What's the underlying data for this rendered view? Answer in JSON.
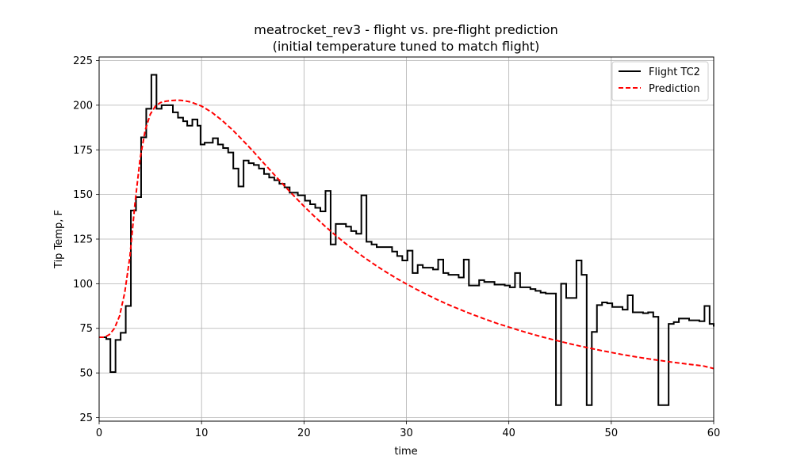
{
  "chart_data": {
    "type": "line",
    "title": "meatrocket_rev3 - flight vs. pre-flight prediction",
    "subtitle": "(initial temperature tuned to match flight)",
    "xlabel": "time",
    "ylabel": "Tip Temp, F",
    "xlim": [
      0,
      60
    ],
    "ylim": [
      23,
      227
    ],
    "xticks": [
      0,
      10,
      20,
      30,
      40,
      50,
      60
    ],
    "yticks": [
      25,
      50,
      75,
      100,
      125,
      150,
      175,
      200,
      225
    ],
    "grid": true,
    "legend_position": "top-right",
    "series": [
      {
        "name": "Flight TC2",
        "color": "#000000",
        "style": "solid",
        "step": true,
        "points": [
          [
            0,
            70
          ],
          [
            0.7,
            70
          ],
          [
            0.7,
            69
          ],
          [
            1.1,
            69
          ],
          [
            1.1,
            50.5
          ],
          [
            1.6,
            50.5
          ],
          [
            1.6,
            68.5
          ],
          [
            2.1,
            68.5
          ],
          [
            2.1,
            72.5
          ],
          [
            2.6,
            72.5
          ],
          [
            2.6,
            87.5
          ],
          [
            3.1,
            87.5
          ],
          [
            3.1,
            141
          ],
          [
            3.6,
            141
          ],
          [
            3.6,
            148.5
          ],
          [
            4.1,
            148.5
          ],
          [
            4.1,
            182
          ],
          [
            4.6,
            182
          ],
          [
            4.6,
            198
          ],
          [
            5.1,
            198
          ],
          [
            5.1,
            217
          ],
          [
            5.6,
            217
          ],
          [
            5.6,
            198
          ],
          [
            6.1,
            198
          ],
          [
            6.1,
            200
          ],
          [
            7.2,
            200
          ],
          [
            7.2,
            196
          ],
          [
            7.7,
            196
          ],
          [
            7.7,
            193
          ],
          [
            8.2,
            193
          ],
          [
            8.2,
            191
          ],
          [
            8.6,
            191
          ],
          [
            8.6,
            188.5
          ],
          [
            9.1,
            188.5
          ],
          [
            9.1,
            192
          ],
          [
            9.6,
            192
          ],
          [
            9.6,
            188.5
          ],
          [
            9.9,
            188.5
          ],
          [
            9.9,
            178
          ],
          [
            10.3,
            178
          ],
          [
            10.3,
            179
          ],
          [
            11.1,
            179
          ],
          [
            11.1,
            181.5
          ],
          [
            11.6,
            181.5
          ],
          [
            11.6,
            178
          ],
          [
            12.1,
            178
          ],
          [
            12.1,
            176
          ],
          [
            12.6,
            176
          ],
          [
            12.6,
            173.5
          ],
          [
            13.1,
            173.5
          ],
          [
            13.1,
            164.5
          ],
          [
            13.6,
            164.5
          ],
          [
            13.6,
            154.5
          ],
          [
            14.1,
            154.5
          ],
          [
            14.1,
            169
          ],
          [
            14.6,
            169
          ],
          [
            14.6,
            167.5
          ],
          [
            15.1,
            167.5
          ],
          [
            15.1,
            166.5
          ],
          [
            15.6,
            166.5
          ],
          [
            15.6,
            164.5
          ],
          [
            16.1,
            164.5
          ],
          [
            16.1,
            161.5
          ],
          [
            16.6,
            161.5
          ],
          [
            16.6,
            159.5
          ],
          [
            17.1,
            159.5
          ],
          [
            17.1,
            158
          ],
          [
            17.6,
            158
          ],
          [
            17.6,
            156
          ],
          [
            18.1,
            156
          ],
          [
            18.1,
            154
          ],
          [
            18.6,
            154
          ],
          [
            18.6,
            151
          ],
          [
            19.4,
            151
          ],
          [
            19.4,
            149.5
          ],
          [
            20.1,
            149.5
          ],
          [
            20.1,
            146.5
          ],
          [
            20.6,
            146.5
          ],
          [
            20.6,
            144.5
          ],
          [
            21.1,
            144.5
          ],
          [
            21.1,
            142.5
          ],
          [
            21.6,
            142.5
          ],
          [
            21.6,
            140.5
          ],
          [
            22.1,
            140.5
          ],
          [
            22.1,
            152
          ],
          [
            22.6,
            152
          ],
          [
            22.6,
            122
          ],
          [
            23.1,
            122
          ],
          [
            23.1,
            133.5
          ],
          [
            24.1,
            133.5
          ],
          [
            24.1,
            132
          ],
          [
            24.6,
            132
          ],
          [
            24.6,
            129.5
          ],
          [
            25.1,
            129.5
          ],
          [
            25.1,
            128
          ],
          [
            25.6,
            128
          ],
          [
            25.6,
            149.5
          ],
          [
            26.1,
            149.5
          ],
          [
            26.1,
            123.5
          ],
          [
            26.6,
            123.5
          ],
          [
            26.6,
            122
          ],
          [
            27.1,
            122
          ],
          [
            27.1,
            120.5
          ],
          [
            28.6,
            120.5
          ],
          [
            28.6,
            118
          ],
          [
            29.1,
            118
          ],
          [
            29.1,
            115.5
          ],
          [
            29.6,
            115.5
          ],
          [
            29.6,
            113
          ],
          [
            30.1,
            113
          ],
          [
            30.1,
            118.5
          ],
          [
            30.6,
            118.5
          ],
          [
            30.6,
            106
          ],
          [
            31.1,
            106
          ],
          [
            31.1,
            110.5
          ],
          [
            31.6,
            110.5
          ],
          [
            31.6,
            109
          ],
          [
            32.6,
            109
          ],
          [
            32.6,
            108
          ],
          [
            33.1,
            108
          ],
          [
            33.1,
            113.5
          ],
          [
            33.6,
            113.5
          ],
          [
            33.6,
            106
          ],
          [
            34.1,
            106
          ],
          [
            34.1,
            105
          ],
          [
            35.1,
            105
          ],
          [
            35.1,
            103.5
          ],
          [
            35.6,
            103.5
          ],
          [
            35.6,
            113.5
          ],
          [
            36.1,
            113.5
          ],
          [
            36.1,
            99
          ],
          [
            37.1,
            99
          ],
          [
            37.1,
            102
          ],
          [
            37.6,
            102
          ],
          [
            37.6,
            101
          ],
          [
            38.6,
            101
          ],
          [
            38.6,
            99.5
          ],
          [
            39.6,
            99.5
          ],
          [
            39.6,
            99
          ],
          [
            40.1,
            99
          ],
          [
            40.1,
            98
          ],
          [
            40.6,
            98
          ],
          [
            40.6,
            106
          ],
          [
            41.1,
            106
          ],
          [
            41.1,
            98
          ],
          [
            42.1,
            98
          ],
          [
            42.1,
            97
          ],
          [
            42.6,
            97
          ],
          [
            42.6,
            96
          ],
          [
            43.1,
            96
          ],
          [
            43.1,
            95
          ],
          [
            43.6,
            95
          ],
          [
            43.6,
            94.5
          ],
          [
            44.6,
            94.5
          ],
          [
            44.6,
            32
          ],
          [
            45.1,
            32
          ],
          [
            45.1,
            100
          ],
          [
            45.6,
            100
          ],
          [
            45.6,
            92
          ],
          [
            46.6,
            92
          ],
          [
            46.6,
            113
          ],
          [
            47.1,
            113
          ],
          [
            47.1,
            105
          ],
          [
            47.6,
            105
          ],
          [
            47.6,
            32
          ],
          [
            48.1,
            32
          ],
          [
            48.1,
            73
          ],
          [
            48.6,
            73
          ],
          [
            48.6,
            88
          ],
          [
            49.1,
            88
          ],
          [
            49.1,
            89.5
          ],
          [
            49.6,
            89.5
          ],
          [
            49.6,
            89
          ],
          [
            50.1,
            89
          ],
          [
            50.1,
            87
          ],
          [
            51.1,
            87
          ],
          [
            51.1,
            85.5
          ],
          [
            51.6,
            85.5
          ],
          [
            51.6,
            93.5
          ],
          [
            52.1,
            93.5
          ],
          [
            52.1,
            84
          ],
          [
            53.1,
            84
          ],
          [
            53.1,
            83.5
          ],
          [
            53.6,
            83.5
          ],
          [
            53.6,
            84
          ],
          [
            54.1,
            84
          ],
          [
            54.1,
            81.5
          ],
          [
            54.6,
            81.5
          ],
          [
            54.6,
            32
          ],
          [
            55.6,
            32
          ],
          [
            55.6,
            77.5
          ],
          [
            56.1,
            77.5
          ],
          [
            56.1,
            78.5
          ],
          [
            56.6,
            78.5
          ],
          [
            56.6,
            80.5
          ],
          [
            57.6,
            80.5
          ],
          [
            57.6,
            79.5
          ],
          [
            58.6,
            79.5
          ],
          [
            58.6,
            79
          ],
          [
            59.1,
            79
          ],
          [
            59.1,
            87.5
          ],
          [
            59.6,
            87.5
          ],
          [
            59.6,
            77.5
          ],
          [
            60,
            77.5
          ],
          [
            60,
            76
          ]
        ]
      },
      {
        "name": "Prediction",
        "color": "#ff0000",
        "style": "dashed",
        "step": false,
        "points": [
          [
            0,
            70
          ],
          [
            0.5,
            70
          ],
          [
            1,
            71.5
          ],
          [
            1.5,
            75
          ],
          [
            2,
            82
          ],
          [
            2.5,
            95
          ],
          [
            3,
            115
          ],
          [
            3.5,
            145
          ],
          [
            4,
            170
          ],
          [
            4.5,
            186
          ],
          [
            5,
            195
          ],
          [
            5.5,
            199.5
          ],
          [
            6,
            201.5
          ],
          [
            6.5,
            202.2
          ],
          [
            7,
            202.6
          ],
          [
            7.5,
            202.8
          ],
          [
            8,
            202.7
          ],
          [
            8.5,
            202.3
          ],
          [
            9,
            201.7
          ],
          [
            10,
            199.5
          ],
          [
            11,
            196
          ],
          [
            12,
            191.5
          ],
          [
            13,
            186.3
          ],
          [
            14,
            180.5
          ],
          [
            15,
            174.4
          ],
          [
            16,
            168
          ],
          [
            17,
            161.7
          ],
          [
            18,
            155.4
          ],
          [
            19,
            149.3
          ],
          [
            20,
            143.4
          ],
          [
            21,
            137.8
          ],
          [
            22,
            132.5
          ],
          [
            23,
            127.5
          ],
          [
            24,
            122.8
          ],
          [
            25,
            118.4
          ],
          [
            26,
            114.2
          ],
          [
            27,
            110.3
          ],
          [
            28,
            106.6
          ],
          [
            29,
            103.1
          ],
          [
            30,
            99.9
          ],
          [
            31,
            96.8
          ],
          [
            32,
            93.9
          ],
          [
            33,
            91.1
          ],
          [
            34,
            88.5
          ],
          [
            35,
            86.1
          ],
          [
            36,
            83.8
          ],
          [
            37,
            81.6
          ],
          [
            38,
            79.5
          ],
          [
            39,
            77.5
          ],
          [
            40,
            75.7
          ],
          [
            41,
            73.9
          ],
          [
            42,
            72.2
          ],
          [
            43,
            70.6
          ],
          [
            44,
            69.1
          ],
          [
            45,
            67.7
          ],
          [
            46,
            66.3
          ],
          [
            47,
            65
          ],
          [
            48,
            63.8
          ],
          [
            49,
            62.6
          ],
          [
            50,
            61.5
          ],
          [
            51,
            60.4
          ],
          [
            52,
            59.4
          ],
          [
            53,
            58.5
          ],
          [
            54,
            57.6
          ],
          [
            55,
            56.8
          ],
          [
            56,
            56
          ],
          [
            57,
            55.3
          ],
          [
            58,
            54.6
          ],
          [
            59,
            53.9
          ],
          [
            60,
            52.5
          ]
        ]
      }
    ]
  }
}
